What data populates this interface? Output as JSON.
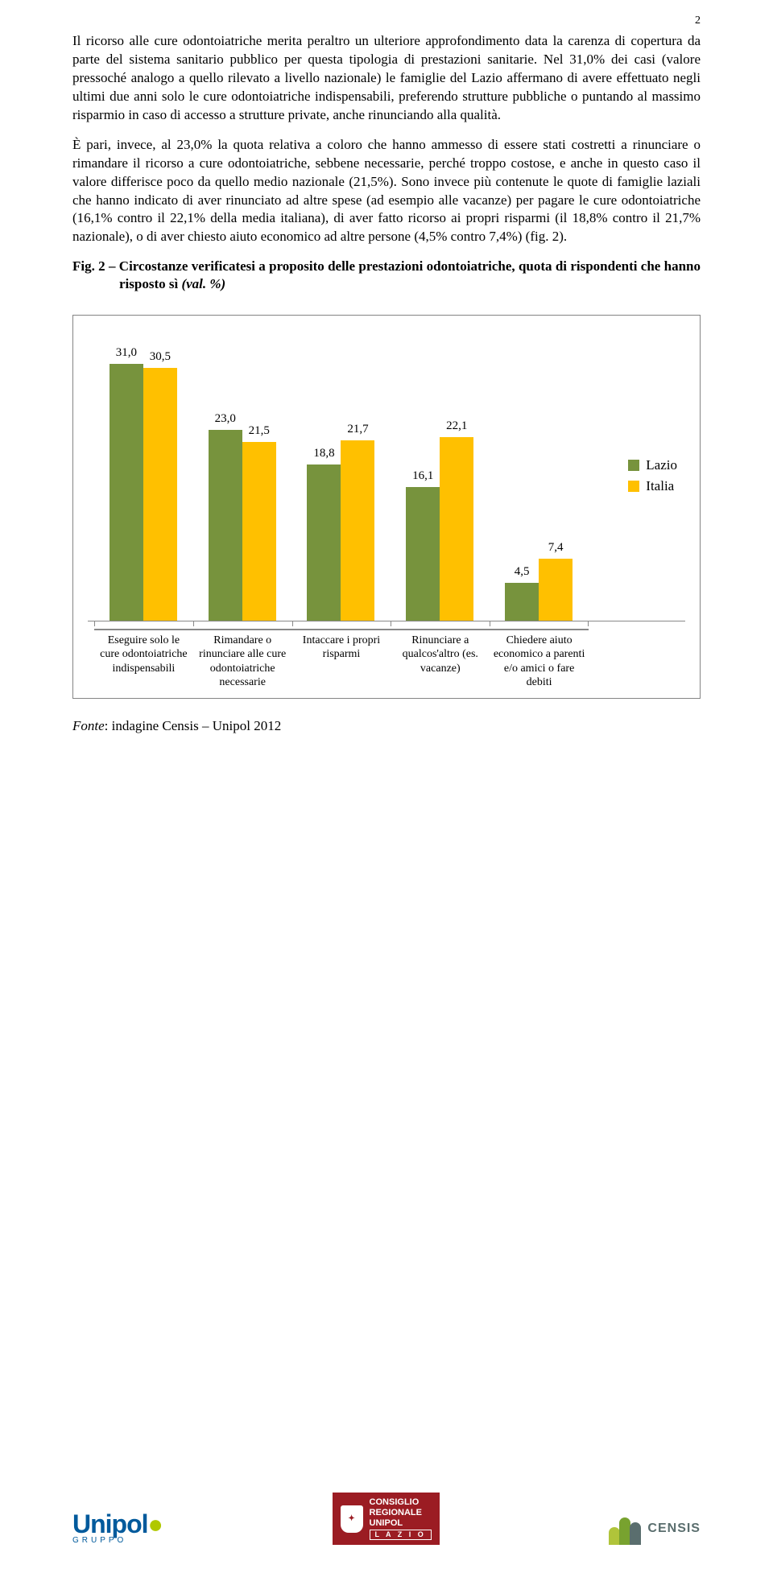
{
  "page_number": "2",
  "paragraphs": {
    "p1": "Il ricorso alle cure odontoiatriche merita peraltro un ulteriore approfondimento data la carenza di copertura da parte del sistema sanitario pubblico per questa tipologia di prestazioni sanitarie. Nel 31,0% dei casi (valore pressoché analogo a quello rilevato a livello nazionale) le famiglie del Lazio affermano di avere effettuato negli ultimi due anni solo le cure odontoiatriche indispensabili, preferendo strutture pubbliche o puntando al massimo risparmio in caso di accesso a strutture private, anche rinunciando alla qualità.",
    "p2": "È pari, invece, al 23,0% la quota relativa a coloro che hanno ammesso di essere stati costretti a rinunciare o rimandare il ricorso a cure odontoiatriche, sebbene necessarie, perché troppo costose, e anche in questo caso il valore differisce poco da quello medio nazionale (21,5%). Sono invece più contenute le quote di famiglie laziali che hanno indicato di aver rinunciato ad altre spese (ad esempio alle vacanze) per pagare le cure odontoiatriche (16,1% contro il 22,1% della media italiana), di aver fatto ricorso ai propri risparmi (il 18,8% contro il 21,7% nazionale), o di aver chiesto aiuto economico ad altre persone (4,5% contro 7,4%) (fig. 2)."
  },
  "figure_caption": {
    "prefix": "Fig. 2 – ",
    "bold": "Circostanze verificatesi a proposito delle prestazioni odontoiatriche, quota di rispondenti che hanno risposto sì ",
    "ital": "(val. %)"
  },
  "chart": {
    "type": "bar",
    "max_value": 35,
    "colors": {
      "lazio": "#77933d",
      "italia": "#ffc000"
    },
    "border_color": "#848484",
    "series": [
      {
        "key": "lazio",
        "label": "Lazio"
      },
      {
        "key": "italia",
        "label": "Italia"
      }
    ],
    "groups": [
      {
        "label": "Eseguire solo le cure odontoiatriche indispensabili",
        "lazio": "31,0",
        "lazio_v": 31.0,
        "italia": "30,5",
        "italia_v": 30.5
      },
      {
        "label": "Rimandare o rinunciare alle cure odontoiatriche necessarie",
        "lazio": "23,0",
        "lazio_v": 23.0,
        "italia": "21,5",
        "italia_v": 21.5
      },
      {
        "label": "Intaccare i propri risparmi",
        "lazio": "18,8",
        "lazio_v": 18.8,
        "italia": "21,7",
        "italia_v": 21.7
      },
      {
        "label": "Rinunciare a qualcos'altro (es. vacanze)",
        "lazio": "16,1",
        "lazio_v": 16.1,
        "italia": "22,1",
        "italia_v": 22.1
      },
      {
        "label": "Chiedere aiuto economico a parenti e/o amici o fare debiti",
        "lazio": "4,5",
        "lazio_v": 4.5,
        "italia": "7,4",
        "italia_v": 7.4
      }
    ]
  },
  "source": {
    "label": "Fonte",
    "text": ": indagine Censis – Unipol 2012"
  },
  "footer": {
    "unipol": {
      "brand": "Unipol",
      "sub": "GRUPPO"
    },
    "consiglio": {
      "l1": "CONSIGLIO",
      "l2": "REGIONALE",
      "l3": "UNIPOL",
      "region": "L A Z I O"
    },
    "censis": {
      "text": "CENSIS"
    }
  }
}
